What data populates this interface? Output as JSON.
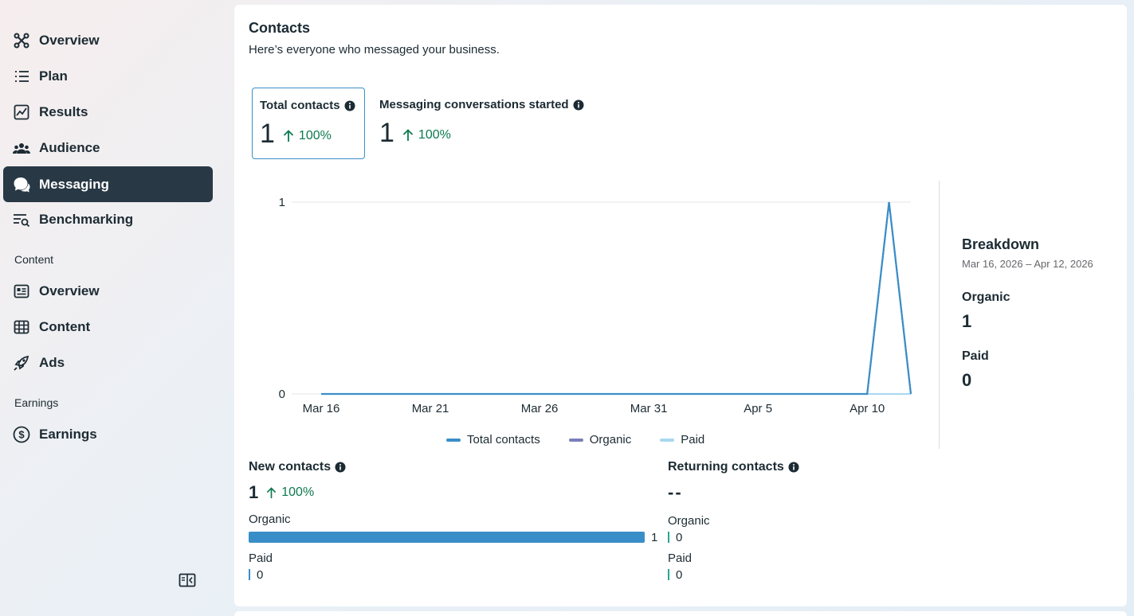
{
  "sidebar": {
    "items": [
      {
        "label": "Overview",
        "icon": "overview-icon"
      },
      {
        "label": "Plan",
        "icon": "list-icon"
      },
      {
        "label": "Results",
        "icon": "chart-icon"
      },
      {
        "label": "Audience",
        "icon": "audience-icon"
      },
      {
        "label": "Messaging",
        "icon": "chat-icon",
        "active": true
      },
      {
        "label": "Benchmarking",
        "icon": "benchmark-icon"
      }
    ],
    "content_section": "Content",
    "content_items": [
      {
        "label": "Overview",
        "icon": "content-overview-icon"
      },
      {
        "label": "Content",
        "icon": "table-icon"
      },
      {
        "label": "Ads",
        "icon": "rocket-icon"
      }
    ],
    "earnings_section": "Earnings",
    "earnings_items": [
      {
        "label": "Earnings",
        "icon": "dollar-icon"
      }
    ]
  },
  "card": {
    "title": "Contacts",
    "subtitle": "Here’s everyone who messaged your business."
  },
  "metrics": {
    "total": {
      "label": "Total contacts",
      "value": "1",
      "change": "100%"
    },
    "conversations": {
      "label": "Messaging conversations started",
      "value": "1",
      "change": "100%"
    }
  },
  "chart_data": {
    "type": "line",
    "x": [
      "Mar 16",
      "Mar 17",
      "Mar 18",
      "Mar 19",
      "Mar 20",
      "Mar 21",
      "Mar 22",
      "Mar 23",
      "Mar 24",
      "Mar 25",
      "Mar 26",
      "Mar 27",
      "Mar 28",
      "Mar 29",
      "Mar 30",
      "Mar 31",
      "Apr 1",
      "Apr 2",
      "Apr 3",
      "Apr 4",
      "Apr 5",
      "Apr 6",
      "Apr 7",
      "Apr 8",
      "Apr 9",
      "Apr 10",
      "Apr 11",
      "Apr 12"
    ],
    "x_ticks": [
      "Mar 16",
      "Mar 21",
      "Mar 26",
      "Mar 31",
      "Apr 5",
      "Apr 10"
    ],
    "y_ticks": [
      "0",
      "1"
    ],
    "ylim": [
      0,
      1
    ],
    "series": [
      {
        "name": "Total contacts",
        "color": "#3a8ec8",
        "values": [
          0,
          0,
          0,
          0,
          0,
          0,
          0,
          0,
          0,
          0,
          0,
          0,
          0,
          0,
          0,
          0,
          0,
          0,
          0,
          0,
          0,
          0,
          0,
          0,
          0,
          0,
          1,
          0
        ]
      },
      {
        "name": "Organic",
        "color": "#7b7fb8",
        "values": [
          0,
          0,
          0,
          0,
          0,
          0,
          0,
          0,
          0,
          0,
          0,
          0,
          0,
          0,
          0,
          0,
          0,
          0,
          0,
          0,
          0,
          0,
          0,
          0,
          0,
          0,
          1,
          0
        ]
      },
      {
        "name": "Paid",
        "color": "#a8d8f0",
        "values": [
          0,
          0,
          0,
          0,
          0,
          0,
          0,
          0,
          0,
          0,
          0,
          0,
          0,
          0,
          0,
          0,
          0,
          0,
          0,
          0,
          0,
          0,
          0,
          0,
          0,
          0,
          0,
          0
        ]
      }
    ],
    "grid": true,
    "legend_position": "bottom"
  },
  "breakdown": {
    "title": "Breakdown",
    "range": "Mar 16, 2026 – Apr 12, 2026",
    "organic_label": "Organic",
    "organic_value": "1",
    "paid_label": "Paid",
    "paid_value": "0"
  },
  "new_contacts": {
    "title": "New contacts",
    "value": "1",
    "change": "100%",
    "organic_label": "Organic",
    "organic_value": "1",
    "organic_fraction": 1.0,
    "paid_label": "Paid",
    "paid_value": "0"
  },
  "returning_contacts": {
    "title": "Returning contacts",
    "value": "--",
    "organic_label": "Organic",
    "organic_value": "0",
    "paid_label": "Paid",
    "paid_value": "0"
  }
}
